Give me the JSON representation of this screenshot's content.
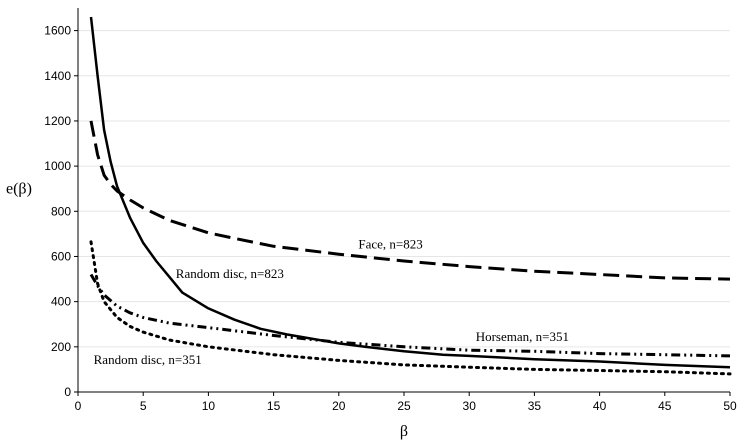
{
  "chart_data": {
    "type": "line",
    "title": "",
    "xlabel": "β",
    "ylabel": "e(β)",
    "xlim": [
      0,
      50
    ],
    "ylim": [
      0,
      1700
    ],
    "xticks": [
      0,
      5,
      10,
      15,
      20,
      25,
      30,
      35,
      40,
      45,
      50
    ],
    "yticks": [
      0,
      200,
      400,
      600,
      800,
      1000,
      1200,
      1400,
      1600
    ],
    "grid": "horizontal",
    "series": [
      {
        "name": "Random disc, n=823",
        "style": "solid",
        "color": "#000000",
        "x": [
          1,
          1.5,
          2,
          2.5,
          3,
          4,
          5,
          6,
          7,
          8,
          10,
          12,
          14,
          16,
          18,
          20,
          22,
          25,
          28,
          30,
          35,
          40,
          45,
          50
        ],
        "y": [
          1660,
          1400,
          1160,
          1020,
          910,
          770,
          660,
          580,
          510,
          440,
          370,
          320,
          280,
          255,
          235,
          215,
          200,
          180,
          165,
          160,
          145,
          135,
          120,
          110
        ]
      },
      {
        "name": "Face, n=823",
        "style": "dashed",
        "color": "#000000",
        "x": [
          1,
          1.5,
          2,
          2.5,
          3,
          4,
          5,
          7,
          10,
          12,
          15,
          20,
          25,
          30,
          35,
          40,
          45,
          50
        ],
        "y": [
          1200,
          1050,
          960,
          920,
          890,
          850,
          815,
          760,
          705,
          680,
          645,
          610,
          580,
          555,
          535,
          520,
          505,
          500
        ]
      },
      {
        "name": "Horseman, n=351",
        "style": "dashdot",
        "color": "#000000",
        "x": [
          1,
          1.5,
          2,
          3,
          4,
          5,
          7,
          10,
          15,
          20,
          25,
          30,
          35,
          40,
          45,
          50
        ],
        "y": [
          520,
          470,
          430,
          380,
          350,
          330,
          305,
          285,
          250,
          220,
          200,
          185,
          180,
          170,
          165,
          160
        ]
      },
      {
        "name": "Random disc, n=351",
        "style": "dotted",
        "color": "#000000",
        "x": [
          1,
          1.5,
          2,
          3,
          4,
          5,
          7,
          10,
          15,
          20,
          25,
          30,
          35,
          40,
          45,
          50
        ],
        "y": [
          665,
          480,
          400,
          330,
          290,
          265,
          230,
          200,
          165,
          140,
          120,
          110,
          100,
          95,
          90,
          80
        ]
      }
    ],
    "annotations": [
      {
        "text": "Face, n=823",
        "x": 21.5,
        "y": 635
      },
      {
        "text": "Random disc, n=823",
        "x": 7.5,
        "y": 505
      },
      {
        "text": "Horseman, n=351",
        "x": 30.5,
        "y": 225
      },
      {
        "text": "Random disc, n=351",
        "x": 1.2,
        "y": 125
      }
    ]
  }
}
